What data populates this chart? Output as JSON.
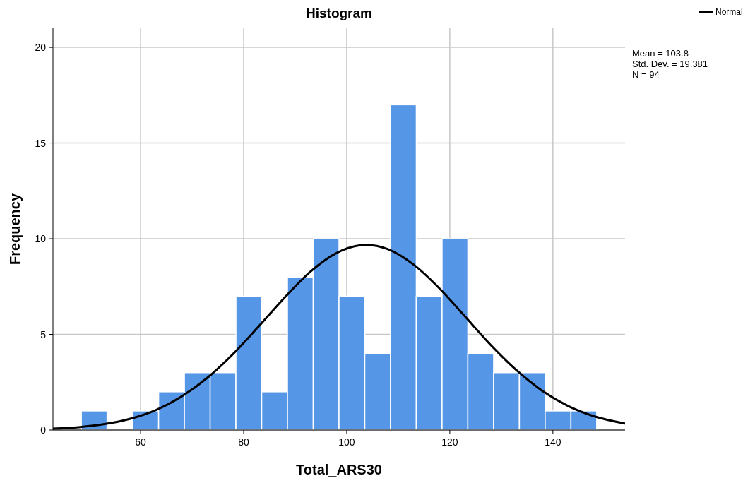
{
  "chart_data": {
    "type": "histogram",
    "title": "Histogram",
    "xlabel": "Total_ARS30",
    "ylabel": "Frequency",
    "xlim": [
      43,
      154
    ],
    "xticks": [
      60,
      80,
      100,
      120,
      140
    ],
    "ylim": [
      0,
      21
    ],
    "yticks": [
      0,
      5,
      10,
      15,
      20
    ],
    "grid": true,
    "legend": "top right",
    "annotations": [
      "Mean = 103.8",
      "Std. Dev. = 19.381",
      "N = 94"
    ],
    "series": [
      {
        "type": "histogram",
        "color": "#5596e6",
        "bins": [
          48.5,
          53.5,
          58.5,
          63.5,
          68.5,
          73.5,
          78.5,
          83.5,
          88.5,
          93.5,
          98.5,
          103.5,
          108.5,
          113.5,
          118.5,
          123.5,
          128.5,
          133.5,
          138.5,
          143.5,
          148.5
        ],
        "values": [
          1,
          0,
          1,
          2,
          3,
          3,
          7,
          2,
          8,
          10,
          7,
          4,
          17,
          7,
          10,
          4,
          3,
          3,
          1,
          1
        ]
      },
      {
        "type": "line",
        "name": "Normal",
        "color": "#000000",
        "x": [
          43,
          48,
          53,
          58,
          63,
          68,
          73,
          78,
          83,
          88,
          93,
          98,
          103.8,
          108,
          113,
          118,
          123,
          128,
          133,
          138,
          143,
          148,
          154
        ],
        "values": [
          0.07,
          0.15,
          0.31,
          0.59,
          1.05,
          1.76,
          2.74,
          3.99,
          5.44,
          6.94,
          8.29,
          9.25,
          9.68,
          9.45,
          8.64,
          7.4,
          5.92,
          4.43,
          3.11,
          2.04,
          1.25,
          0.72,
          0.34
        ]
      }
    ]
  }
}
